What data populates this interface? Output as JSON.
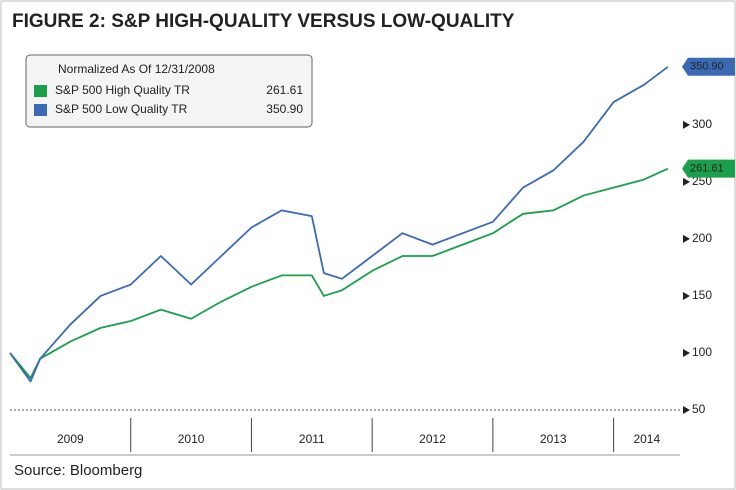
{
  "chart_data": {
    "type": "line",
    "title": "FIGURE 2: S&P HIGH-QUALITY VERSUS LOW-QUALITY",
    "legend_title": "Normalized As Of 12/31/2008",
    "source": "Source: Bloomberg",
    "x": [
      2009.0,
      2009.17,
      2009.25,
      2009.5,
      2009.75,
      2010.0,
      2010.25,
      2010.5,
      2010.75,
      2011.0,
      2011.25,
      2011.5,
      2011.6,
      2011.75,
      2012.0,
      2012.25,
      2012.5,
      2012.75,
      2013.0,
      2013.25,
      2013.5,
      2013.75,
      2014.0,
      2014.25,
      2014.45
    ],
    "series": [
      {
        "name": "S&P 500 High Quality TR",
        "end_label": "261.61",
        "color": "#1aa04a",
        "values": [
          100,
          78,
          95,
          110,
          122,
          128,
          138,
          130,
          145,
          158,
          168,
          168,
          150,
          155,
          172,
          185,
          185,
          195,
          205,
          222,
          225,
          238,
          245,
          252,
          261.61
        ]
      },
      {
        "name": "S&P 500 Low Quality TR",
        "end_label": "350.90",
        "color": "#3a6ab4",
        "values": [
          100,
          75,
          95,
          125,
          150,
          160,
          185,
          160,
          185,
          210,
          225,
          220,
          170,
          165,
          185,
          205,
          195,
          205,
          215,
          245,
          260,
          285,
          320,
          335,
          350.9
        ]
      }
    ],
    "xlim": [
      2009,
      2014.55
    ],
    "xticks": [
      2009,
      2010,
      2011,
      2012,
      2013,
      2014
    ],
    "ylim": [
      50,
      370
    ],
    "yticks": [
      50,
      100,
      150,
      200,
      250,
      300
    ]
  }
}
